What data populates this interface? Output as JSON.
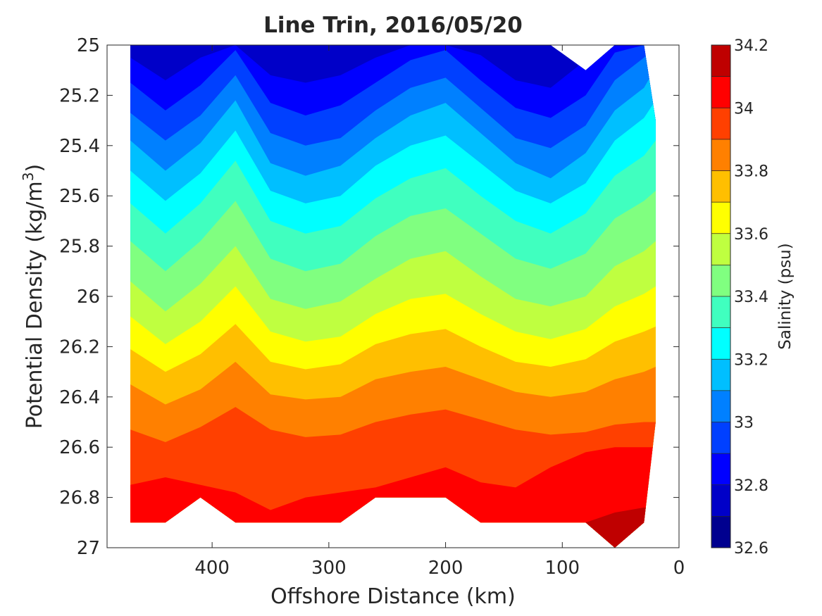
{
  "chart_data": {
    "type": "contour",
    "title": "Line Trin, 2016/05/20",
    "xlabel": "Offshore Distance (km)",
    "ylabel": "Potential Density (kg/m",
    "ylabel_sup": "3",
    "ylabel_end": ")",
    "xlim": [
      490,
      0
    ],
    "x_reversed": true,
    "ylim": [
      25,
      27
    ],
    "y_reversed": true,
    "xticks": [
      400,
      300,
      200,
      100,
      0
    ],
    "yticks": [
      25,
      25.2,
      25.4,
      25.6,
      25.8,
      26,
      26.2,
      26.4,
      26.6,
      26.8,
      27
    ],
    "colorbar": {
      "label": "Salinity (psu)",
      "range": [
        32.6,
        34.2
      ],
      "ticks": [
        32.6,
        32.8,
        33,
        33.2,
        33.4,
        33.6,
        33.8,
        34,
        34.2
      ],
      "levels": [
        32.6,
        32.7,
        32.8,
        32.9,
        33.0,
        33.1,
        33.2,
        33.3,
        33.4,
        33.5,
        33.6,
        33.7,
        33.8,
        33.9,
        34.0,
        34.1,
        34.2
      ],
      "colors": [
        "#00008f",
        "#0000c8",
        "#0000ff",
        "#0040ff",
        "#0080ff",
        "#00bfff",
        "#00ffff",
        "#40ffbf",
        "#80ff80",
        "#bfff40",
        "#ffff00",
        "#ffbf00",
        "#ff8000",
        "#ff4000",
        "#ff0000",
        "#bf0000"
      ]
    },
    "x": [
      470,
      440,
      410,
      380,
      350,
      320,
      290,
      260,
      230,
      200,
      170,
      140,
      110,
      80,
      55,
      30,
      20
    ],
    "isolines": [
      {
        "level": 32.8,
        "y": [
          25.0,
          25.01,
          25.0,
          25.0,
          25.02,
          25.02,
          25.01,
          25.0,
          25.0,
          25.0,
          25.0,
          25.03,
          25.03,
          25.0,
          25.0,
          25.0,
          25.0
        ]
      },
      {
        "level": 32.9,
        "y": [
          25.05,
          25.14,
          25.05,
          25.0,
          25.12,
          25.15,
          25.12,
          25.05,
          25.0,
          25.0,
          25.04,
          25.14,
          25.17,
          25.06,
          25.0,
          25.0,
          25.0
        ]
      },
      {
        "level": 33.0,
        "y": [
          25.15,
          25.26,
          25.16,
          25.02,
          25.23,
          25.28,
          25.24,
          25.15,
          25.06,
          25.02,
          25.14,
          25.25,
          25.29,
          25.2,
          25.03,
          25.0,
          25.0
        ]
      },
      {
        "level": 33.1,
        "y": [
          25.27,
          25.38,
          25.28,
          25.12,
          25.35,
          25.4,
          25.37,
          25.26,
          25.17,
          25.13,
          25.25,
          25.37,
          25.41,
          25.32,
          25.14,
          25.05,
          25.0
        ]
      },
      {
        "level": 33.2,
        "y": [
          25.38,
          25.5,
          25.39,
          25.22,
          25.47,
          25.52,
          25.48,
          25.37,
          25.28,
          25.23,
          25.35,
          25.47,
          25.53,
          25.43,
          25.26,
          25.17,
          25.09
        ]
      },
      {
        "level": 33.3,
        "y": [
          25.5,
          25.62,
          25.51,
          25.34,
          25.58,
          25.63,
          25.6,
          25.48,
          25.4,
          25.36,
          25.47,
          25.58,
          25.63,
          25.55,
          25.38,
          25.29,
          25.22
        ]
      },
      {
        "level": 33.4,
        "y": [
          25.63,
          25.75,
          25.63,
          25.46,
          25.7,
          25.75,
          25.72,
          25.61,
          25.53,
          25.49,
          25.6,
          25.7,
          25.75,
          25.67,
          25.52,
          25.44,
          25.38
        ]
      },
      {
        "level": 33.5,
        "y": [
          25.78,
          25.9,
          25.78,
          25.62,
          25.85,
          25.9,
          25.87,
          25.76,
          25.68,
          25.65,
          25.75,
          25.85,
          25.89,
          25.83,
          25.69,
          25.62,
          25.58
        ]
      },
      {
        "level": 33.6,
        "y": [
          25.94,
          26.06,
          25.95,
          25.8,
          26.01,
          26.05,
          26.02,
          25.93,
          25.85,
          25.82,
          25.92,
          26.01,
          26.04,
          26.0,
          25.88,
          25.82,
          25.78
        ]
      },
      {
        "level": 33.7,
        "y": [
          26.08,
          26.19,
          26.1,
          25.96,
          26.14,
          26.18,
          26.16,
          26.07,
          26.01,
          25.99,
          26.07,
          26.14,
          26.17,
          26.13,
          26.04,
          25.99,
          25.96
        ]
      },
      {
        "level": 33.8,
        "y": [
          26.21,
          26.3,
          26.23,
          26.11,
          26.26,
          26.29,
          26.27,
          26.19,
          26.15,
          26.13,
          26.2,
          26.26,
          26.28,
          26.25,
          26.18,
          26.14,
          26.12
        ]
      },
      {
        "level": 33.9,
        "y": [
          26.35,
          26.43,
          26.37,
          26.26,
          26.39,
          26.41,
          26.4,
          26.33,
          26.3,
          26.28,
          26.33,
          26.38,
          26.4,
          26.38,
          26.33,
          26.3,
          26.28
        ]
      },
      {
        "level": 34.0,
        "y": [
          26.53,
          26.58,
          26.52,
          26.44,
          26.53,
          26.56,
          26.55,
          26.5,
          26.47,
          26.45,
          26.49,
          26.53,
          26.55,
          26.54,
          26.51,
          26.5,
          26.5
        ]
      },
      {
        "level": 34.1,
        "y": [
          26.75,
          26.72,
          26.75,
          26.78,
          26.85,
          26.8,
          26.78,
          26.76,
          26.72,
          26.68,
          26.74,
          26.76,
          26.68,
          26.62,
          26.6,
          26.6,
          26.6
        ]
      },
      {
        "level": 34.2,
        "y": [
          27.0,
          27.0,
          27.0,
          27.0,
          27.0,
          27.0,
          27.0,
          27.0,
          27.0,
          27.0,
          27.0,
          27.0,
          27.0,
          26.9,
          26.86,
          26.84,
          26.84
        ]
      }
    ],
    "data_top": [
      25.0,
      25.0,
      25.0,
      25.0,
      25.0,
      25.0,
      25.0,
      25.0,
      25.0,
      25.0,
      25.0,
      25.0,
      25.0,
      25.1,
      25.0,
      25.0,
      25.3
    ],
    "data_bottom": [
      26.9,
      26.9,
      26.8,
      26.9,
      26.9,
      26.9,
      26.9,
      26.8,
      26.8,
      26.8,
      26.9,
      26.9,
      26.9,
      26.9,
      27.0,
      26.9,
      26.5
    ]
  }
}
